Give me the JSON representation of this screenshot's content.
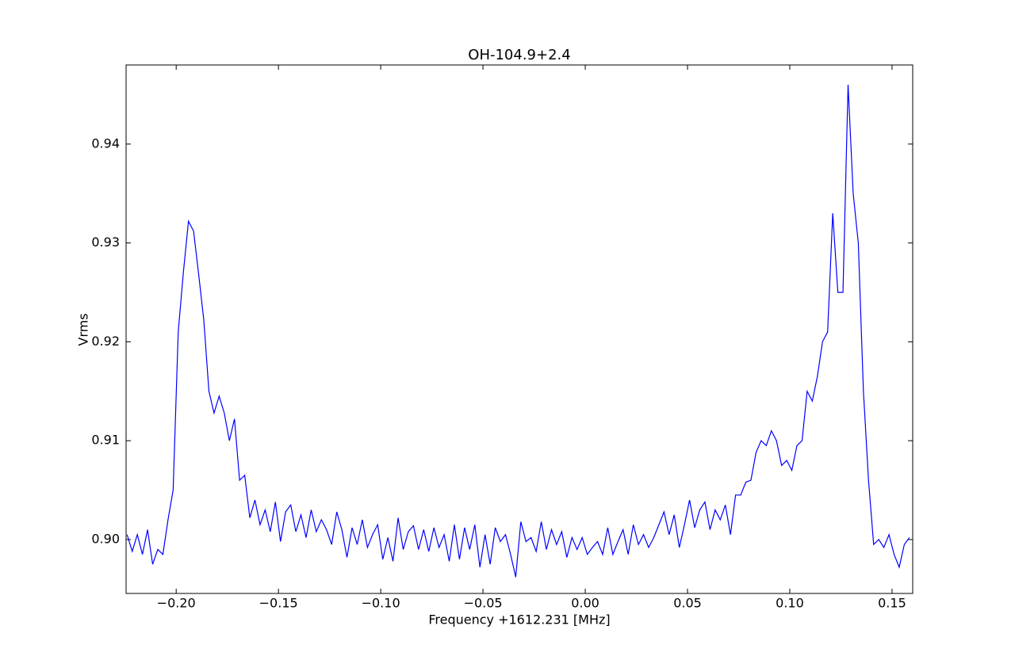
{
  "chart_data": {
    "type": "line",
    "title": "OH-104.9+2.4",
    "xlabel": "Frequency +1612.231 [MHz]",
    "ylabel": "Vrms",
    "xlim": [
      -0.2245,
      0.1601
    ],
    "ylim": [
      0.89455,
      0.948
    ],
    "xticks": [
      {
        "value": -0.2,
        "label": "−0.20"
      },
      {
        "value": -0.15,
        "label": "−0.15"
      },
      {
        "value": -0.1,
        "label": "−0.10"
      },
      {
        "value": -0.05,
        "label": "−0.05"
      },
      {
        "value": 0,
        "label": "0.00"
      },
      {
        "value": 0.05,
        "label": "0.05"
      },
      {
        "value": 0.1,
        "label": "0.10"
      },
      {
        "value": 0.15,
        "label": "0.15"
      }
    ],
    "yticks": [
      {
        "value": 0.9,
        "label": "0.90"
      },
      0.91,
      0.92,
      0.93,
      0.94
    ],
    "series": [
      {
        "color": "#0000ff",
        "x": [
          -0.224,
          -0.2215,
          -0.219,
          -0.2165,
          -0.214,
          -0.2115,
          -0.209,
          -0.2065,
          -0.204,
          -0.2015,
          -0.199,
          -0.1965,
          -0.194,
          -0.1915,
          -0.189,
          -0.1865,
          -0.184,
          -0.1815,
          -0.179,
          -0.1765,
          -0.174,
          -0.1715,
          -0.169,
          -0.1665,
          -0.164,
          -0.1615,
          -0.159,
          -0.1565,
          -0.154,
          -0.1515,
          -0.149,
          -0.1465,
          -0.144,
          -0.1415,
          -0.139,
          -0.1365,
          -0.134,
          -0.1315,
          -0.129,
          -0.1265,
          -0.124,
          -0.1215,
          -0.119,
          -0.1165,
          -0.114,
          -0.1115,
          -0.109,
          -0.1065,
          -0.104,
          -0.1015,
          -0.099,
          -0.0965,
          -0.094,
          -0.0915,
          -0.089,
          -0.0865,
          -0.084,
          -0.0815,
          -0.079,
          -0.0765,
          -0.074,
          -0.0715,
          -0.069,
          -0.0665,
          -0.064,
          -0.0615,
          -0.059,
          -0.0565,
          -0.054,
          -0.0515,
          -0.049,
          -0.0465,
          -0.044,
          -0.0415,
          -0.039,
          -0.0365,
          -0.034,
          -0.0315,
          -0.029,
          -0.0265,
          -0.024,
          -0.0215,
          -0.019,
          -0.0165,
          -0.014,
          -0.0115,
          -0.009,
          -0.0065,
          -0.004,
          -0.0015,
          0.001,
          0.0035,
          0.006,
          0.0085,
          0.011,
          0.0135,
          0.016,
          0.0185,
          0.021,
          0.0235,
          0.026,
          0.0285,
          0.031,
          0.0335,
          0.036,
          0.0385,
          0.041,
          0.0435,
          0.046,
          0.0485,
          0.051,
          0.0535,
          0.056,
          0.0585,
          0.061,
          0.0635,
          0.066,
          0.0685,
          0.071,
          0.0735,
          0.076,
          0.0785,
          0.081,
          0.0835,
          0.086,
          0.0885,
          0.091,
          0.0935,
          0.096,
          0.0985,
          0.101,
          0.1035,
          0.106,
          0.1085,
          0.111,
          0.1135,
          0.116,
          0.1185,
          0.121,
          0.1235,
          0.126,
          0.1285,
          0.131,
          0.1335,
          0.136,
          0.1385,
          0.141,
          0.1435,
          0.146,
          0.1485,
          0.151,
          0.1535,
          0.156,
          0.1585
        ],
        "values": [
          0.9005,
          0.8988,
          0.9005,
          0.8985,
          0.901,
          0.8975,
          0.899,
          0.8985,
          0.902,
          0.905,
          0.921,
          0.927,
          0.9322,
          0.9312,
          0.9268,
          0.9222,
          0.915,
          0.9128,
          0.9145,
          0.9128,
          0.91,
          0.9122,
          0.906,
          0.9065,
          0.9022,
          0.904,
          0.9015,
          0.903,
          0.9008,
          0.9038,
          0.8998,
          0.9028,
          0.9035,
          0.9008,
          0.9025,
          0.9002,
          0.903,
          0.9008,
          0.902,
          0.901,
          0.8995,
          0.9028,
          0.901,
          0.8982,
          0.9012,
          0.8995,
          0.902,
          0.8992,
          0.9005,
          0.9015,
          0.898,
          0.9002,
          0.8978,
          0.9022,
          0.899,
          0.9008,
          0.9014,
          0.899,
          0.901,
          0.8988,
          0.9012,
          0.8992,
          0.9005,
          0.8978,
          0.9015,
          0.898,
          0.9012,
          0.899,
          0.9015,
          0.8972,
          0.9005,
          0.8975,
          0.9012,
          0.8998,
          0.9005,
          0.8985,
          0.8962,
          0.9018,
          0.8998,
          0.9002,
          0.8988,
          0.9018,
          0.899,
          0.901,
          0.8995,
          0.9008,
          0.8982,
          0.9002,
          0.899,
          0.9002,
          0.8985,
          0.8992,
          0.8998,
          0.8985,
          0.9012,
          0.8985,
          0.8998,
          0.901,
          0.8985,
          0.9015,
          0.8995,
          0.9005,
          0.8992,
          0.9002,
          0.9015,
          0.9028,
          0.9005,
          0.9025,
          0.8992,
          0.9015,
          0.904,
          0.9012,
          0.903,
          0.9038,
          0.901,
          0.903,
          0.902,
          0.9035,
          0.9005,
          0.9045,
          0.9045,
          0.9058,
          0.906,
          0.9088,
          0.91,
          0.9095,
          0.911,
          0.91,
          0.9075,
          0.908,
          0.907,
          0.9095,
          0.91,
          0.915,
          0.914,
          0.9165,
          0.92,
          0.921,
          0.933,
          0.925,
          0.925,
          0.946,
          0.935,
          0.93,
          0.915,
          0.906,
          0.8995,
          0.9,
          0.8992,
          0.9005,
          0.8985,
          0.8972,
          0.8995,
          0.9002
        ]
      }
    ]
  }
}
